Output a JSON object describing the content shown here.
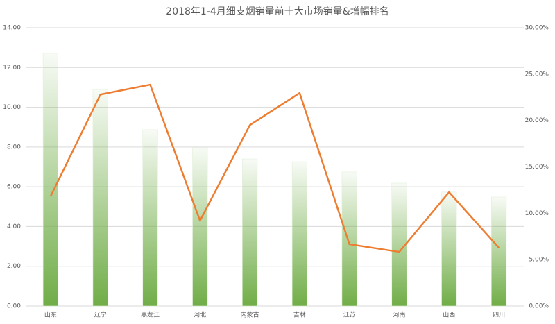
{
  "chart_data": {
    "type": "combo",
    "title": "2018年1-4月细支烟销量前十大市场销量&增幅排名",
    "categories": [
      "山东",
      "辽宁",
      "黑龙江",
      "河北",
      "内蒙古",
      "吉林",
      "江苏",
      "河南",
      "山西",
      "四川"
    ],
    "series": [
      {
        "type": "bar",
        "color": "#70ad47",
        "values": [
          12.71,
          10.89,
          8.87,
          7.96,
          7.4,
          7.26,
          6.74,
          6.18,
          5.73,
          5.48
        ]
      },
      {
        "type": "line",
        "axis": "y2",
        "color": "#ed7d31",
        "values": [
          11.82,
          22.8,
          23.86,
          9.2,
          19.5,
          22.96,
          6.66,
          5.83,
          12.27,
          6.28
        ]
      }
    ],
    "ylim": [
      0,
      14
    ],
    "yticks": [
      {
        "value": 0,
        "label": "0.00"
      },
      {
        "value": 2,
        "label": "2.00"
      },
      {
        "value": 4,
        "label": "4.00"
      },
      {
        "value": 6,
        "label": "6.00"
      },
      {
        "value": 8,
        "label": "8.00"
      },
      {
        "value": 10,
        "label": "10.00"
      },
      {
        "value": 12,
        "label": "12.00"
      },
      {
        "value": 14,
        "label": "14.00"
      }
    ],
    "y2lim": [
      0,
      30
    ],
    "y2ticks": [
      {
        "value": 0,
        "label": "0.00%"
      },
      {
        "value": 5,
        "label": "5.00%"
      },
      {
        "value": 10,
        "label": "10.00%"
      },
      {
        "value": 15,
        "label": "15.00%"
      },
      {
        "value": 20,
        "label": "20.00%"
      },
      {
        "value": 25,
        "label": "25.00%"
      },
      {
        "value": 30,
        "label": "30.00%"
      }
    ],
    "grid": true
  }
}
